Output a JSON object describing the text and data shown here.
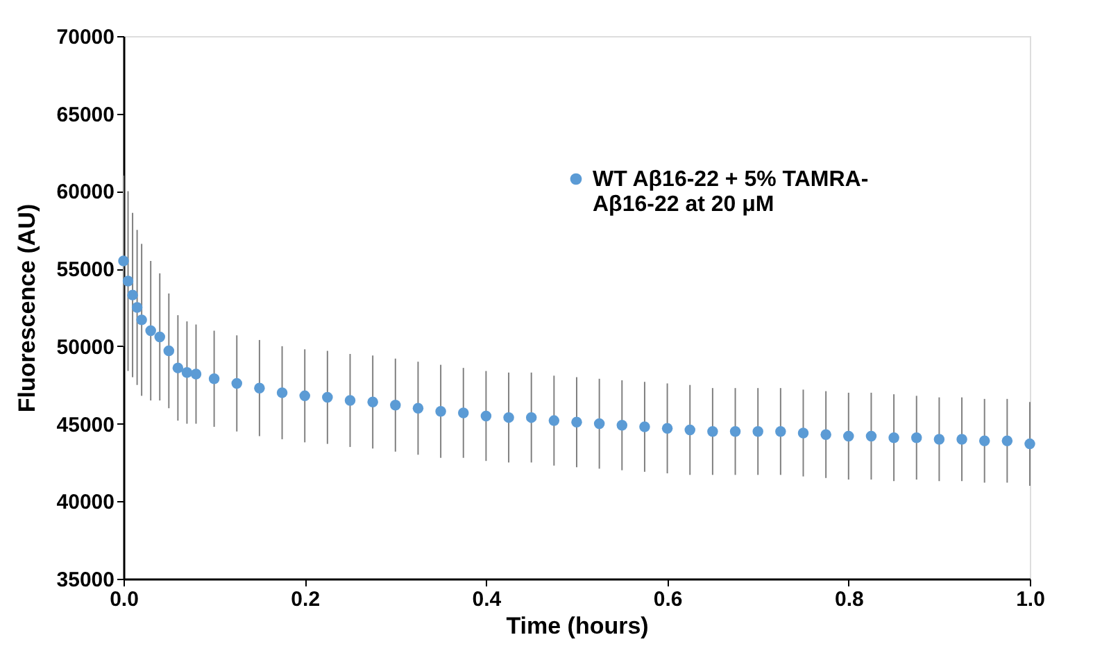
{
  "chart_data": {
    "type": "scatter",
    "xlabel": "Time (hours)",
    "ylabel": "Fluorescence (AU)",
    "x": [
      0,
      0.005,
      0.01,
      0.015,
      0.02,
      0.03,
      0.04,
      0.05,
      0.06,
      0.07,
      0.08,
      0.1,
      0.125,
      0.15,
      0.175,
      0.2,
      0.225,
      0.25,
      0.275,
      0.3,
      0.325,
      0.35,
      0.375,
      0.4,
      0.425,
      0.45,
      0.475,
      0.5,
      0.525,
      0.55,
      0.575,
      0.6,
      0.625,
      0.65,
      0.675,
      0.7,
      0.725,
      0.75,
      0.775,
      0.8,
      0.825,
      0.85,
      0.875,
      0.9,
      0.925,
      0.95,
      0.975,
      1.0
    ],
    "series": [
      {
        "name": "WT Aβ16-22 + 5% TAMRA-Aβ16-22 at 20 μM",
        "color": "#5b9bd5",
        "values": [
          55500,
          54200,
          53300,
          52500,
          51700,
          51000,
          50600,
          49700,
          48600,
          48300,
          48200,
          47900,
          47600,
          47300,
          47000,
          46800,
          46700,
          46500,
          46400,
          46200,
          46000,
          45800,
          45700,
          45500,
          45400,
          45400,
          45200,
          45100,
          45000,
          44900,
          44800,
          44700,
          44600,
          44500,
          44500,
          44500,
          44500,
          44400,
          44300,
          44200,
          44200,
          44100,
          44100,
          44000,
          44000,
          43900,
          43900,
          43700
        ],
        "errors": [
          5500,
          5800,
          5300,
          5000,
          4900,
          4500,
          4100,
          3700,
          3400,
          3300,
          3200,
          3100,
          3100,
          3100,
          3000,
          3000,
          3000,
          3000,
          3000,
          3000,
          3000,
          3000,
          2900,
          2900,
          2900,
          2900,
          2900,
          2900,
          2900,
          2900,
          2900,
          2900,
          2900,
          2800,
          2800,
          2800,
          2800,
          2800,
          2800,
          2800,
          2800,
          2800,
          2700,
          2700,
          2700,
          2700,
          2700,
          2700
        ]
      }
    ],
    "xlim": [
      0,
      1
    ],
    "xticks": [
      {
        "value": 0,
        "label": "0.0"
      },
      {
        "value": 0.2,
        "label": "0.2"
      },
      {
        "value": 0.4,
        "label": "0.4"
      },
      {
        "value": 0.6,
        "label": "0.6"
      },
      {
        "value": 0.8,
        "label": "0.8"
      },
      {
        "value": 1,
        "label": "1.0"
      }
    ],
    "ylim": [
      35000,
      70000
    ],
    "yticks": [
      35000,
      40000,
      45000,
      50000,
      55000,
      60000,
      65000,
      70000
    ],
    "legend": "top right",
    "grid": false,
    "marker": "circle"
  }
}
